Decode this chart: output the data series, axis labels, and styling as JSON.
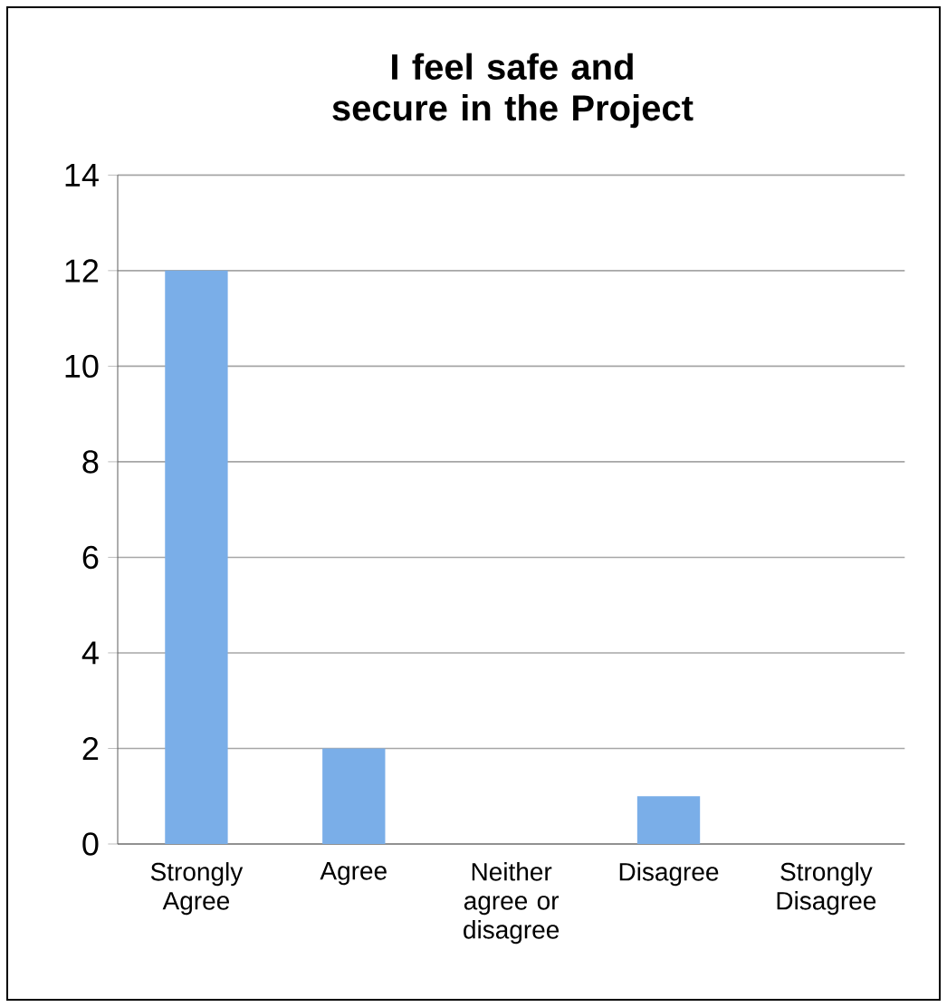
{
  "chart_data": {
    "type": "bar",
    "title": "I feel safe and secure in the Project",
    "categories": [
      "Strongly Agree",
      "Agree",
      "Neither agree or disagree",
      "Disagree",
      "Strongly Disagree"
    ],
    "values": [
      12,
      2,
      0,
      1,
      0
    ],
    "color": "#7aaee8",
    "ylim": [
      0,
      14
    ],
    "yticks": [
      0,
      2,
      4,
      6,
      8,
      10,
      12,
      14
    ],
    "grid": "y"
  }
}
